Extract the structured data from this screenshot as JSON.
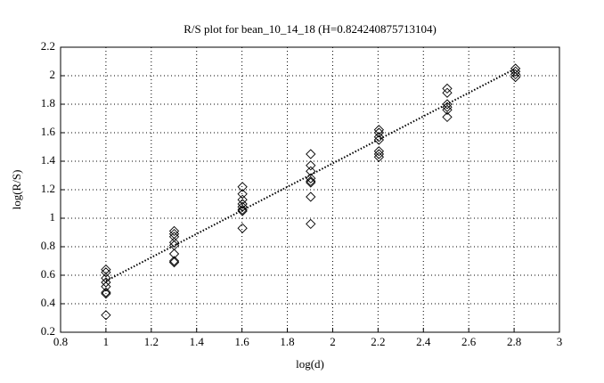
{
  "chart_data": {
    "type": "scatter",
    "title": "R/S plot for bean_10_14_18 (H=0.824240875713104)",
    "x_label": "log(d)",
    "y_label": "log(R/S)",
    "xlim": [
      0.8,
      3
    ],
    "ylim": [
      0.2,
      2.2
    ],
    "xticks": [
      0.8,
      1,
      1.2,
      1.4,
      1.6,
      1.8,
      2,
      2.2,
      2.4,
      2.6,
      2.8,
      3
    ],
    "yticks": [
      0.2,
      0.4,
      0.6,
      0.8,
      1,
      1.2,
      1.4,
      1.6,
      1.8,
      2,
      2.2
    ],
    "grid": true,
    "series": [
      {
        "marker": "diamond",
        "color": "#000000",
        "x": [
          1,
          1,
          1,
          1,
          1,
          1,
          1,
          1,
          1.301,
          1.301,
          1.301,
          1.301,
          1.301,
          1.301,
          1.301,
          1.301,
          1.602,
          1.602,
          1.602,
          1.602,
          1.602,
          1.602,
          1.602,
          1.602,
          1.903,
          1.903,
          1.903,
          1.903,
          1.903,
          1.903,
          1.903,
          1.903,
          2.204,
          2.204,
          2.204,
          2.204,
          2.204,
          2.204,
          2.204,
          2.505,
          2.505,
          2.505,
          2.505,
          2.505,
          2.505,
          2.806,
          2.806,
          2.806,
          2.806
        ],
        "values": [
          0.64,
          0.62,
          0.58,
          0.55,
          0.52,
          0.48,
          0.47,
          0.32,
          0.91,
          0.89,
          0.87,
          0.83,
          0.81,
          0.75,
          0.7,
          0.69,
          1.22,
          1.17,
          1.13,
          1.1,
          1.08,
          1.06,
          1.05,
          0.93,
          1.45,
          1.37,
          1.33,
          1.28,
          1.26,
          1.25,
          1.15,
          0.96,
          1.62,
          1.6,
          1.57,
          1.55,
          1.47,
          1.45,
          1.43,
          1.91,
          1.88,
          1.8,
          1.78,
          1.76,
          1.71,
          2.05,
          2.03,
          2.01,
          1.99
        ]
      },
      {
        "line_style": "dotted",
        "color": "#000000",
        "x": [
          1,
          2.806
        ],
        "values": [
          0.56,
          2.05
        ]
      }
    ]
  }
}
